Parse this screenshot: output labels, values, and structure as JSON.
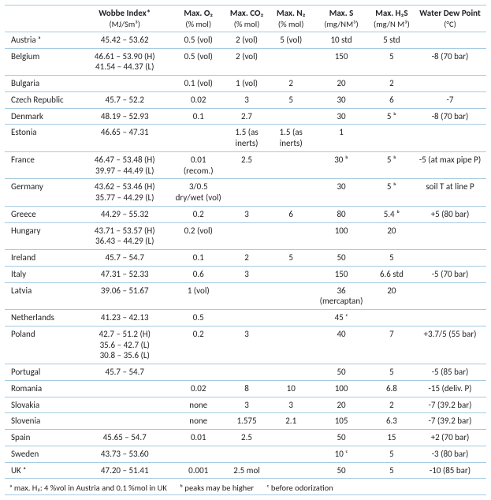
{
  "table": {
    "columns": [
      {
        "name": "Country",
        "label": "",
        "unit": ""
      },
      {
        "name": "WobbeIndex",
        "label": "Wobbe Index*",
        "unit": "(MJ/Sm³)"
      },
      {
        "name": "MaxO2",
        "label": "Max. O₂",
        "unit": "(% mol)"
      },
      {
        "name": "MaxCO2",
        "label": "Max. CO₂",
        "unit": "(% mol)"
      },
      {
        "name": "MaxN2",
        "label": "Max. N₂",
        "unit": "(% mol)"
      },
      {
        "name": "MaxS",
        "label": "Max. S",
        "unit": "(mg/NM³)"
      },
      {
        "name": "MaxH2S",
        "label": "Max. H₂S",
        "unit": "(mg/N M³)"
      },
      {
        "name": "WaterDewPoint",
        "label": "Water Dew Point",
        "unit": "(°C)"
      }
    ],
    "rows": [
      {
        "cols": [
          "Austria ᵃ",
          "45.42 – 53.62",
          "0.5 (vol)",
          "2 (vol)",
          "5 (vol)",
          "10 std",
          "5 std",
          ""
        ]
      },
      {
        "cols": [
          "Belgium",
          "46.61 – 53.90 (H)\n41.54 – 44.37 (L)",
          "0.5 (vol)",
          "2 (vol)",
          "",
          "150",
          "5",
          "-8 (70 bar)"
        ]
      },
      {
        "cols": [
          "Bulgaria",
          "",
          "0.1 (vol)",
          "1 (vol)",
          "2",
          "20",
          "2",
          ""
        ]
      },
      {
        "cols": [
          "Czech Republic",
          "45.7 – 52.2",
          "0.02",
          "3",
          "5",
          "30",
          "6",
          "-7"
        ]
      },
      {
        "cols": [
          "Denmark",
          "48.19 – 52.93",
          "0.1",
          "2.7",
          "",
          "30",
          "5 ᵇ",
          "-8 (70 bar)"
        ]
      },
      {
        "cols": [
          "Estonia",
          "46.65 – 47.31",
          "",
          "1.5 (as inerts)",
          "1.5 (as inerts)",
          "1",
          "",
          ""
        ]
      },
      {
        "cols": [
          "France",
          "46.47 – 53.48 (H)\n39.97 – 44.49 (L)",
          "0.01 (recom.)",
          "2.5",
          "",
          "30 ᵇ",
          "5 ᵇ",
          "-5 (at max pipe P)"
        ]
      },
      {
        "cols": [
          "Germany",
          "43.62 – 53.46 (H)\n35.77 – 44.29 (L)",
          "3/0.5 dry/wet (vol)",
          "",
          "",
          "30",
          "5 ᵇ",
          "soil T at line P"
        ]
      },
      {
        "cols": [
          "Greece",
          "44.29 – 55.32",
          "0.2",
          "3",
          "6",
          "80",
          "5.4 ᵇ",
          "+5 (80 bar)"
        ]
      },
      {
        "cols": [
          "Hungary",
          "43.71 – 53.57 (H)\n36.43 – 44.29 (L)",
          "0.2 (vol)",
          "",
          "",
          "100",
          "20",
          ""
        ]
      },
      {
        "cols": [
          "Ireland",
          "45.7 – 54.7",
          "0.1",
          "2",
          "5",
          "50",
          "5",
          ""
        ]
      },
      {
        "cols": [
          "Italy",
          "47.31 – 52.33",
          "0.6",
          "3",
          "",
          "150",
          "6.6 std",
          "-5 (70 bar)"
        ]
      },
      {
        "cols": [
          "Latvia",
          "39.06 – 51.67",
          "1 (vol)",
          "",
          "",
          "36 (mercaptan)",
          "20",
          ""
        ]
      },
      {
        "cols": [
          "Netherlands",
          "41.23 – 42.13",
          "0.5",
          "",
          "",
          "45 ᶜ",
          "",
          ""
        ]
      },
      {
        "cols": [
          "Poland",
          "42.7 – 51.2 (H)\n35.6 – 42.7 (L)\n30.8 – 35.6 (L)",
          "0.2",
          "3",
          "",
          "40",
          "7",
          "+3.7/5 (55 bar)"
        ]
      },
      {
        "cols": [
          "Portugal",
          "45.7 – 54.7",
          "",
          "",
          "",
          "50",
          "5",
          "-5 (85 bar)"
        ]
      },
      {
        "cols": [
          "Romania",
          "",
          "0.02",
          "8",
          "10",
          "100",
          "6.8",
          "-15 (deliv. P)"
        ]
      },
      {
        "cols": [
          "Slovakia",
          "",
          "none",
          "3",
          "3",
          "20",
          "2",
          "-7 (39.2 bar)"
        ]
      },
      {
        "cols": [
          "Slovenia",
          "",
          "none",
          "1.575",
          "2.1",
          "105",
          "6.3",
          "-7 (39.2 bar)"
        ]
      },
      {
        "cols": [
          "Spain",
          "45.65 – 54.7",
          "0.01",
          "2.5",
          "",
          "50",
          "15",
          "+2 (70 bar)"
        ]
      },
      {
        "cols": [
          "Sweden",
          "43.73 – 53.60",
          "",
          "",
          "",
          "10 ᶜ",
          "5",
          "-3 (80 bar)"
        ]
      },
      {
        "cols": [
          "UK ᵃ",
          "47.20 – 51.41",
          "0.001",
          "2.5 mol",
          "",
          "50",
          "5",
          "-10 (85 bar)"
        ]
      }
    ],
    "footnotes": {
      "a": "ᵃ max. H₂: 4 %vol in Austria and 0.1 %mol in UK",
      "b": "ᵇ peaks may be higher",
      "c": "ᶜ before odorization"
    },
    "style": {
      "border_color": "#a6cbe3",
      "font_family": "Calibri",
      "header_fontsize_pt": 11,
      "body_fontsize_pt": 11,
      "background_color": "#ffffff",
      "text_color": "#222222"
    }
  }
}
